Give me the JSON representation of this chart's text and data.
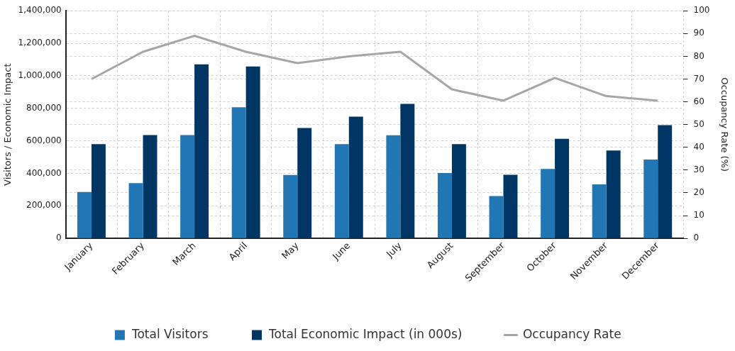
{
  "chart_data": {
    "type": "bar",
    "categories": [
      "January",
      "February",
      "March",
      "April",
      "May",
      "June",
      "July",
      "August",
      "September",
      "October",
      "November",
      "December"
    ],
    "series": [
      {
        "name": "Total Visitors",
        "color": "#2077b4",
        "values": [
          285000,
          340000,
          635000,
          807000,
          390000,
          580000,
          634000,
          402000,
          260000,
          427000,
          332000,
          485000
        ]
      },
      {
        "name": "Total Economic Impact (in 000s)",
        "color": "#003663",
        "values": [
          580000,
          635000,
          1070000,
          1057000,
          679000,
          749000,
          827000,
          580000,
          391000,
          613000,
          540000,
          696000
        ]
      },
      {
        "name": "Occupancy Rate",
        "type": "line",
        "axis": "y2",
        "color": "#a6a6a6",
        "marker": "none",
        "line_style": "solid",
        "values": [
          70,
          82,
          89,
          82,
          77,
          80,
          82,
          65.5,
          60.5,
          70.5,
          62.5,
          60.5
        ]
      }
    ],
    "ylabel": "Visitors / Economic Impact",
    "y2label": "Occupancy Rate (%)",
    "ylim": [
      0,
      1400000
    ],
    "yticks": [
      0,
      {
        "value": 200000,
        "label": "200,000"
      },
      {
        "value": 400000,
        "label": "400,000"
      },
      {
        "value": 600000,
        "label": "600,000"
      },
      {
        "value": 800000,
        "label": "800,000"
      },
      {
        "value": 1000000,
        "label": "1,000,000"
      },
      {
        "value": 1200000,
        "label": "1,200,000"
      },
      {
        "value": 1400000,
        "label": "1,400,000"
      }
    ],
    "y2lim": [
      0,
      100
    ],
    "y2ticks": [
      0,
      10,
      20,
      30,
      40,
      50,
      60,
      70,
      80,
      90,
      100
    ],
    "grid": true,
    "legend": "bottom"
  }
}
